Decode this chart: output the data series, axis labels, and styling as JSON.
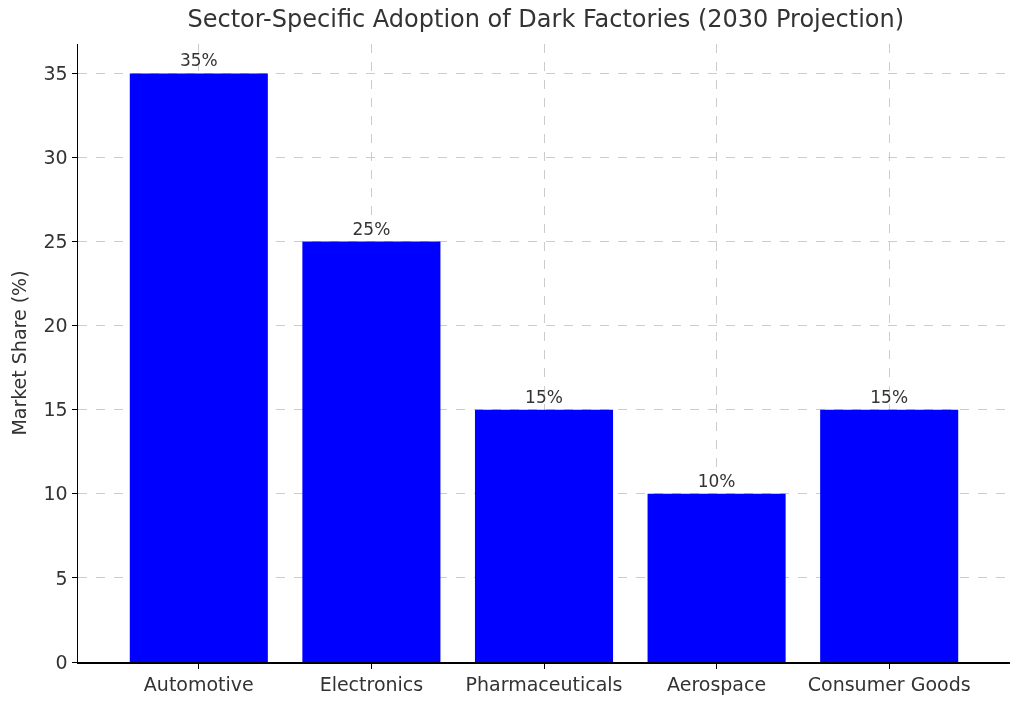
{
  "chart_data": {
    "type": "bar",
    "title": "Sector-Specific Adoption of Dark Factories (2030 Projection)",
    "ylabel": "Market Share (%)",
    "categories": [
      "Automotive",
      "Electronics",
      "Pharmaceuticals",
      "Aerospace",
      "Consumer Goods"
    ],
    "values": [
      35,
      25,
      15,
      10,
      15
    ],
    "value_labels": [
      "35%",
      "25%",
      "15%",
      "10%",
      "15%"
    ],
    "color": "#0000ff",
    "ylim": [
      0,
      36.75
    ],
    "yticks": [
      0,
      5,
      10,
      15,
      20,
      25,
      30,
      35
    ],
    "grid": true,
    "legend": false
  }
}
